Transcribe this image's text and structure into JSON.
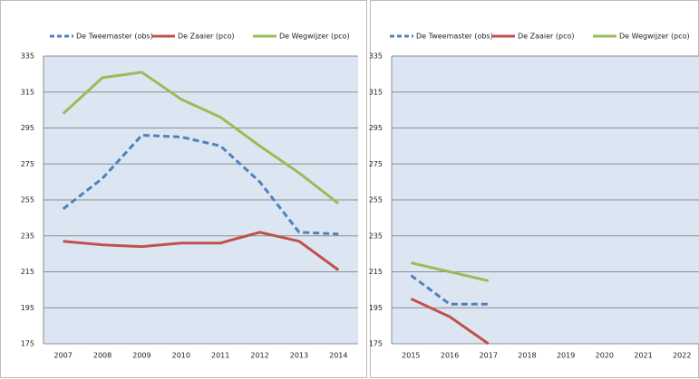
{
  "chart_data": [
    {
      "type": "line",
      "categories": [
        "2007",
        "2008",
        "2009",
        "2010",
        "2011",
        "2012",
        "2013",
        "2014"
      ],
      "series": [
        {
          "name": "De Tweemaster (obs)",
          "color": "#4f81bd",
          "dashed": true,
          "values": [
            250,
            267,
            291,
            290,
            285,
            265,
            237,
            236
          ]
        },
        {
          "name": "De Zaaier (pco)",
          "color": "#c0504d",
          "dashed": false,
          "values": [
            232,
            230,
            229,
            231,
            231,
            237,
            232,
            216
          ]
        },
        {
          "name": "De Wegwijzer (pco)",
          "color": "#9bbb59",
          "dashed": false,
          "values": [
            303,
            323,
            326,
            311,
            301,
            285,
            270,
            253
          ]
        }
      ],
      "ylim": [
        175,
        335
      ],
      "yticks": [
        175,
        195,
        215,
        235,
        255,
        275,
        295,
        315,
        335
      ],
      "grid": true
    },
    {
      "type": "line",
      "categories": [
        "2015",
        "2016",
        "2017",
        "2018",
        "2019",
        "2020",
        "2021",
        "2022"
      ],
      "series": [
        {
          "name": "De Tweemaster (obs)",
          "color": "#4f81bd",
          "dashed": true,
          "values": [
            213,
            197,
            197,
            null,
            null,
            null,
            null,
            null
          ]
        },
        {
          "name": "De Zaaier (pco)",
          "color": "#c0504d",
          "dashed": false,
          "values": [
            200,
            190,
            175,
            null,
            null,
            null,
            null,
            null
          ]
        },
        {
          "name": "De Wegwijzer (pco)",
          "color": "#9bbb59",
          "dashed": false,
          "values": [
            220,
            215,
            210,
            null,
            null,
            null,
            null,
            null
          ]
        }
      ],
      "ylim": [
        175,
        335
      ],
      "yticks": [
        175,
        195,
        215,
        235,
        255,
        275,
        295,
        315,
        335
      ],
      "grid": true
    }
  ]
}
